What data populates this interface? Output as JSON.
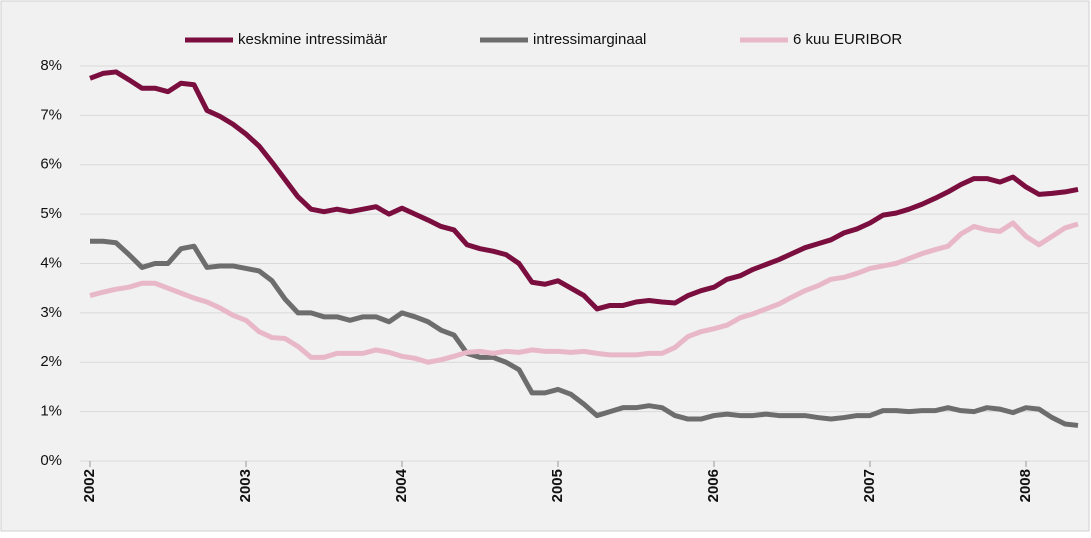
{
  "chart_data": {
    "type": "line",
    "categories": [
      "2002",
      null,
      null,
      null,
      null,
      null,
      null,
      null,
      null,
      null,
      null,
      null,
      "2003",
      null,
      null,
      null,
      null,
      null,
      null,
      null,
      null,
      null,
      null,
      null,
      "2004",
      null,
      null,
      null,
      null,
      null,
      null,
      null,
      null,
      null,
      null,
      null,
      "2005",
      null,
      null,
      null,
      null,
      null,
      null,
      null,
      null,
      null,
      null,
      null,
      "2006",
      null,
      null,
      null,
      null,
      null,
      null,
      null,
      null,
      null,
      null,
      null,
      "2007",
      null,
      null,
      null,
      null,
      null,
      null,
      null,
      null,
      null,
      null,
      null,
      "2008",
      null,
      null,
      null,
      null
    ],
    "series": [
      {
        "name": "keskmine intressimäär",
        "color": "#7a0e3f",
        "values": [
          7.75,
          7.85,
          7.88,
          7.72,
          7.55,
          7.55,
          7.48,
          7.65,
          7.62,
          7.1,
          6.98,
          6.82,
          6.62,
          6.38,
          6.05,
          5.7,
          5.35,
          5.1,
          5.05,
          5.1,
          5.05,
          5.1,
          5.15,
          5.0,
          5.12,
          5.0,
          4.88,
          4.75,
          4.68,
          4.38,
          4.3,
          4.25,
          4.18,
          4.0,
          3.62,
          3.58,
          3.65,
          3.5,
          3.35,
          3.08,
          3.15,
          3.15,
          3.22,
          3.25,
          3.22,
          3.2,
          3.35,
          3.45,
          3.52,
          3.68,
          3.75,
          3.88,
          3.98,
          4.08,
          4.2,
          4.32,
          4.4,
          4.48,
          4.62,
          4.7,
          4.82,
          4.98,
          5.02,
          5.1,
          5.2,
          5.32,
          5.45,
          5.6,
          5.72,
          5.72,
          5.65,
          5.75,
          5.55,
          5.4,
          5.42,
          5.45,
          5.5
        ]
      },
      {
        "name": "intressimarginaal",
        "color": "#6d6d6d",
        "values": [
          4.45,
          4.45,
          4.42,
          4.18,
          3.92,
          4.0,
          4.0,
          4.3,
          4.35,
          3.92,
          3.95,
          3.95,
          3.9,
          3.85,
          3.65,
          3.28,
          3.0,
          3.0,
          2.92,
          2.92,
          2.85,
          2.92,
          2.92,
          2.82,
          3.0,
          2.92,
          2.82,
          2.65,
          2.55,
          2.18,
          2.1,
          2.1,
          2.0,
          1.85,
          1.38,
          1.38,
          1.45,
          1.35,
          1.15,
          0.92,
          1.0,
          1.08,
          1.08,
          1.12,
          1.08,
          0.92,
          0.85,
          0.85,
          0.92,
          0.95,
          0.92,
          0.92,
          0.95,
          0.92,
          0.92,
          0.92,
          0.88,
          0.85,
          0.88,
          0.92,
          0.92,
          1.02,
          1.02,
          1.0,
          1.02,
          1.02,
          1.08,
          1.02,
          1.0,
          1.08,
          1.05,
          0.98,
          1.08,
          1.05,
          0.88,
          0.75,
          0.72
        ]
      },
      {
        "name": "6 kuu EURIBOR",
        "color": "#e8b8c8",
        "values": [
          3.35,
          3.42,
          3.48,
          3.52,
          3.6,
          3.6,
          3.5,
          3.4,
          3.3,
          3.22,
          3.1,
          2.95,
          2.85,
          2.62,
          2.5,
          2.48,
          2.32,
          2.1,
          2.1,
          2.18,
          2.18,
          2.18,
          2.25,
          2.2,
          2.12,
          2.08,
          2.0,
          2.05,
          2.12,
          2.2,
          2.22,
          2.18,
          2.22,
          2.2,
          2.25,
          2.22,
          2.22,
          2.2,
          2.22,
          2.18,
          2.15,
          2.15,
          2.15,
          2.18,
          2.18,
          2.3,
          2.52,
          2.62,
          2.68,
          2.75,
          2.9,
          2.98,
          3.08,
          3.18,
          3.32,
          3.45,
          3.55,
          3.68,
          3.72,
          3.8,
          3.9,
          3.95,
          4.0,
          4.1,
          4.2,
          4.28,
          4.35,
          4.6,
          4.75,
          4.68,
          4.65,
          4.82,
          4.55,
          4.38,
          4.55,
          4.72,
          4.8
        ]
      }
    ],
    "ylim": [
      0,
      8
    ],
    "yticks": [
      {
        "value": 0,
        "label": "0%"
      },
      {
        "value": 1,
        "label": "1%"
      },
      {
        "value": 2,
        "label": "2%"
      },
      {
        "value": 3,
        "label": "3%"
      },
      {
        "value": 4,
        "label": "4%"
      },
      {
        "value": 5,
        "label": "5%"
      },
      {
        "value": 6,
        "label": "6%"
      },
      {
        "value": 7,
        "label": "7%"
      },
      {
        "value": 8,
        "label": "8%"
      }
    ],
    "grid": true,
    "legend": "top"
  }
}
